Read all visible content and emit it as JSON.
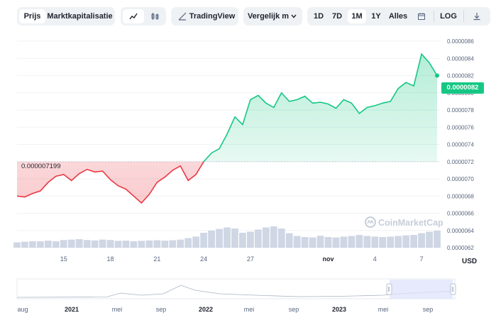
{
  "toolbar": {
    "view_tabs": [
      "Prijs",
      "Marktkapitalisatie"
    ],
    "active_view": "Prijs",
    "chart_modes": [
      "line-chart-icon",
      "candlestick-icon"
    ],
    "tradingview_label": "TradingView",
    "compare_label": "Vergelijk m",
    "ranges": [
      "1D",
      "7D",
      "1M",
      "1Y",
      "Alles"
    ],
    "active_range": "1M",
    "log_label": "LOG",
    "calendar_icon": "calendar-icon",
    "download_icon": "download-icon"
  },
  "colors": {
    "up": "#16c784",
    "down": "#ea3943",
    "grid": "#eff2f5",
    "text": "#58667e"
  },
  "current_price_label": "0.0000082",
  "start_price_label": "0.000007199",
  "currency_label": "USD",
  "watermark": "CoinMarketCap",
  "chart_data": {
    "type": "line",
    "title": "",
    "xlabel": "",
    "ylabel": "",
    "y_ticks": [
      "0.0000086",
      "0.0000084",
      "0.0000082",
      "0.0000080",
      "0.0000078",
      "0.0000076",
      "0.0000074",
      "0.0000072",
      "0.0000070",
      "0.0000068",
      "0.0000066",
      "0.0000064",
      "0.0000062"
    ],
    "y_tick_values": [
      8.6,
      8.4,
      8.2,
      8.0,
      7.8,
      7.6,
      7.4,
      7.2,
      7.0,
      6.8,
      6.6,
      6.4,
      6.2
    ],
    "y_unit": "1e-6 USD",
    "ylim": [
      6.2,
      8.6
    ],
    "x_ticks": [
      "15",
      "18",
      "21",
      "24",
      "27",
      "nov",
      "4",
      "7"
    ],
    "x_tick_dates": [
      "2023-10-15",
      "2023-10-18",
      "2023-10-21",
      "2023-10-24",
      "2023-10-27",
      "2023-11-01",
      "2023-11-04",
      "2023-11-07"
    ],
    "xlim": [
      "2023-10-12",
      "2023-11-08"
    ],
    "baseline": 7.199,
    "series": [
      {
        "x": [
          "2023-10-12",
          "2023-10-12T12:00",
          "2023-10-13",
          "2023-10-13T12:00",
          "2023-10-14",
          "2023-10-14T12:00",
          "2023-10-15",
          "2023-10-15T12:00",
          "2023-10-16",
          "2023-10-16T12:00",
          "2023-10-17",
          "2023-10-17T12:00",
          "2023-10-18",
          "2023-10-18T12:00",
          "2023-10-19",
          "2023-10-19T12:00",
          "2023-10-20",
          "2023-10-20T12:00",
          "2023-10-21",
          "2023-10-21T12:00",
          "2023-10-22",
          "2023-10-22T12:00",
          "2023-10-23",
          "2023-10-23T12:00",
          "2023-10-24",
          "2023-10-24T12:00",
          "2023-10-25",
          "2023-10-25T12:00",
          "2023-10-26",
          "2023-10-26T12:00",
          "2023-10-27",
          "2023-10-27T12:00",
          "2023-10-28",
          "2023-10-28T12:00",
          "2023-10-29",
          "2023-10-29T12:00",
          "2023-10-30",
          "2023-10-30T12:00",
          "2023-10-31",
          "2023-10-31T12:00",
          "2023-11-01",
          "2023-11-01T12:00",
          "2023-11-02",
          "2023-11-02T12:00",
          "2023-11-03",
          "2023-11-03T12:00",
          "2023-11-04",
          "2023-11-04T12:00",
          "2023-11-05",
          "2023-11-05T12:00",
          "2023-11-06",
          "2023-11-06T12:00",
          "2023-11-07",
          "2023-11-07T12:00",
          "2023-11-08"
        ],
        "values": [
          6.8,
          6.79,
          6.83,
          6.86,
          6.96,
          7.03,
          7.05,
          6.98,
          7.06,
          7.11,
          7.08,
          7.09,
          6.99,
          6.92,
          6.88,
          6.8,
          6.72,
          6.82,
          6.96,
          7.02,
          7.1,
          7.15,
          6.98,
          7.05,
          7.2,
          7.3,
          7.35,
          7.52,
          7.72,
          7.63,
          7.92,
          7.97,
          7.88,
          7.83,
          8.0,
          7.9,
          7.92,
          7.96,
          7.88,
          7.89,
          7.87,
          7.82,
          7.92,
          7.88,
          7.76,
          7.83,
          7.85,
          7.88,
          7.9,
          8.05,
          8.12,
          8.08,
          8.45,
          8.35,
          8.2
        ]
      }
    ],
    "volume": [
      0.25,
      0.28,
      0.3,
      0.3,
      0.33,
      0.3,
      0.36,
      0.38,
      0.4,
      0.36,
      0.34,
      0.38,
      0.36,
      0.32,
      0.33,
      0.3,
      0.32,
      0.34,
      0.35,
      0.33,
      0.35,
      0.38,
      0.45,
      0.52,
      0.7,
      0.8,
      0.88,
      0.95,
      0.9,
      0.7,
      0.75,
      0.85,
      0.95,
      1.0,
      0.9,
      0.68,
      0.55,
      0.5,
      0.48,
      0.56,
      0.5,
      0.48,
      0.52,
      0.55,
      0.6,
      0.55,
      0.52,
      0.5,
      0.52,
      0.55,
      0.58,
      0.6,
      0.68,
      0.75,
      0.8
    ],
    "navigator": {
      "x_ticks": [
        "aug",
        "2021",
        "mei",
        "sep",
        "2022",
        "mei",
        "sep",
        "2023",
        "mei",
        "sep"
      ],
      "bold_ticks": [
        "2021",
        "2022",
        "2023"
      ]
    }
  }
}
